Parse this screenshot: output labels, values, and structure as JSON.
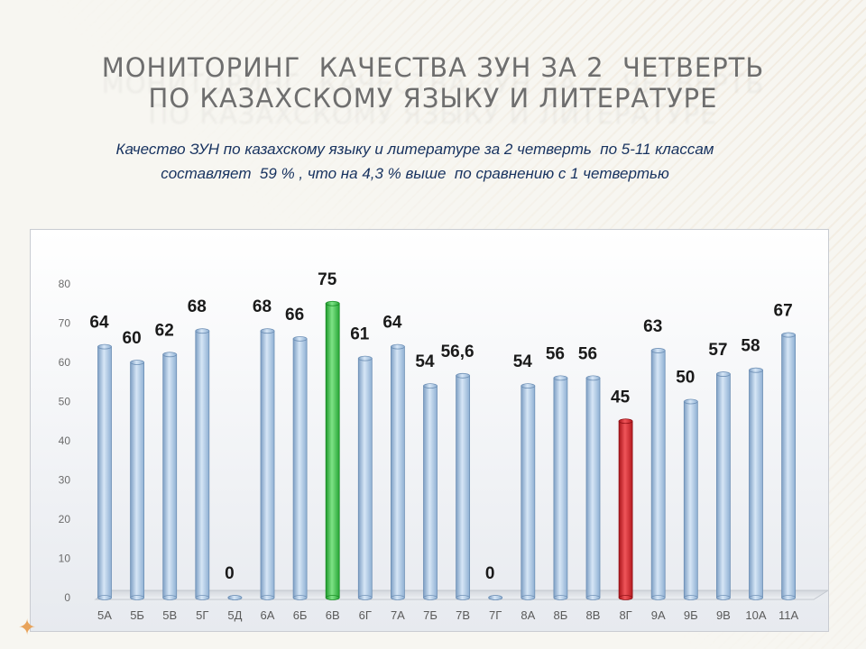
{
  "title": {
    "line1": "МОНИТОРИНГ  КАЧЕСТВА ЗУН ЗА 2  ЧЕТВЕРТЬ",
    "line2": "ПО КАЗАХСКОМУ ЯЗЫКУ И ЛИТЕРАТУРЕ"
  },
  "subtitle": {
    "line1": "Качество ЗУН по казахскому языку и литературе за 2 четверть  по 5-11 классам",
    "line2": "составляет  59 % , что на 4,3 % выше  по сравнению с 1 четвертью"
  },
  "colors": {
    "bar_default": "#a9c7e6",
    "bar_highlight_max": "#3fc24f",
    "bar_highlight_min": "#d9252b",
    "title": "#6e6e6e",
    "subtitle": "#17325f"
  },
  "chart_data": {
    "type": "bar",
    "categories": [
      "5А",
      "5Б",
      "5В",
      "5Г",
      "5Д",
      "6А",
      "6Б",
      "6В",
      "6Г",
      "7А",
      "7Б",
      "7В",
      "7Г",
      "8А",
      "8Б",
      "8В",
      "8Г",
      "9А",
      "9Б",
      "9В",
      "10А",
      "11А"
    ],
    "values": [
      64,
      60,
      62,
      68,
      0,
      68,
      66,
      75,
      61,
      64,
      54,
      56.6,
      0,
      54,
      56,
      56,
      45,
      63,
      50,
      57,
      58,
      67
    ],
    "data_labels": [
      "64",
      "60",
      "62",
      "68",
      "0",
      "68",
      "66",
      "75",
      "61",
      "64",
      "54",
      "56,6",
      "0",
      "54",
      "56",
      "56",
      "45",
      "63",
      "50",
      "57",
      "58",
      "67"
    ],
    "bar_colors": [
      "default",
      "default",
      "default",
      "default",
      "default",
      "default",
      "default",
      "highlight_max",
      "default",
      "default",
      "default",
      "default",
      "default",
      "default",
      "default",
      "default",
      "highlight_min",
      "default",
      "default",
      "default",
      "default",
      "default"
    ],
    "yticks": [
      0,
      10,
      20,
      30,
      40,
      50,
      60,
      70,
      80
    ],
    "ylim": [
      0,
      80
    ],
    "style": "3d-cylinder",
    "grid": false,
    "legend": "none"
  }
}
